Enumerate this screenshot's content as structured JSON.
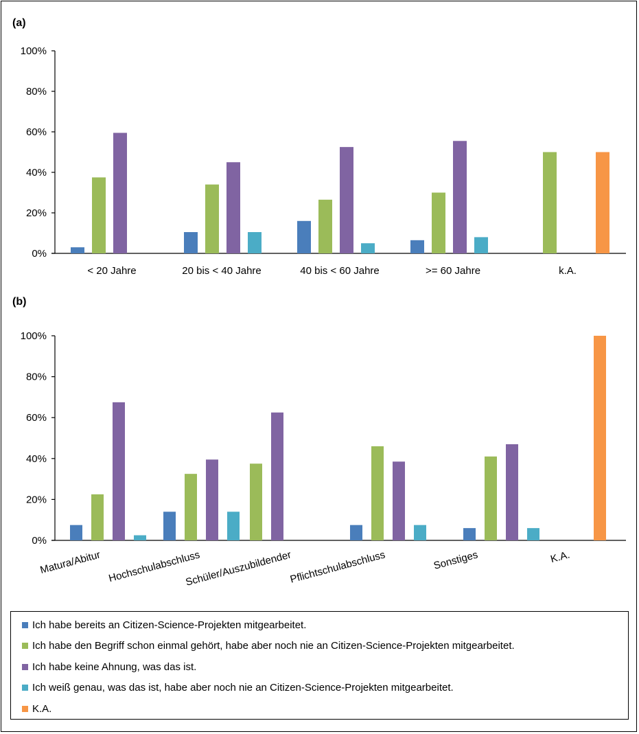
{
  "colors": {
    "s1": "#4a7ebb",
    "s2": "#9bbb59",
    "s3": "#8064a2",
    "s4": "#4bacc6",
    "s5": "#f79646"
  },
  "legend": [
    {
      "name": "Ich habe bereits an Citizen-Science-Projekten mitgearbeitet.",
      "color": "#4a7ebb"
    },
    {
      "name": "Ich habe den Begriff schon einmal gehört, habe aber noch nie an Citizen-Science-Projekten mitgearbeitet.",
      "color": "#9bbb59"
    },
    {
      "name": "Ich habe keine Ahnung, was das ist.",
      "color": "#8064a2"
    },
    {
      "name": "Ich weiß genau, was das ist, habe aber noch nie an Citizen-Science-Projekten mitgearbeitet.",
      "color": "#4bacc6"
    },
    {
      "name": "K.A.",
      "color": "#f79646"
    }
  ],
  "chart_data": [
    {
      "type": "bar",
      "panel_label": "(a)",
      "categories": [
        "< 20 Jahre",
        "20 bis < 40 Jahre",
        "40 bis < 60 Jahre",
        ">= 60 Jahre",
        "k.A."
      ],
      "ylim": [
        0,
        100
      ],
      "yticks": [
        "0%",
        "20%",
        "40%",
        "60%",
        "80%",
        "100%"
      ],
      "tick_values": [
        0,
        20,
        40,
        60,
        80,
        100
      ],
      "series": [
        {
          "values": [
            3,
            10.5,
            16,
            6.5,
            0
          ]
        },
        {
          "values": [
            37.5,
            34,
            26.5,
            30,
            50
          ]
        },
        {
          "values": [
            59.5,
            45,
            52.5,
            55.5,
            0
          ]
        },
        {
          "values": [
            0,
            10.5,
            5,
            8,
            0
          ]
        },
        {
          "values": [
            0,
            0,
            0,
            0,
            50
          ]
        }
      ]
    },
    {
      "type": "bar",
      "panel_label": "(b)",
      "categories": [
        "Matura/Abitur",
        "Hochschulabschluss",
        "Schüler/Auszubildender",
        "Pflichtschulabschluss",
        "Sonstiges",
        "K.A."
      ],
      "ylim": [
        0,
        100
      ],
      "yticks": [
        "0%",
        "20%",
        "40%",
        "60%",
        "80%",
        "100%"
      ],
      "tick_values": [
        0,
        20,
        40,
        60,
        80,
        100
      ],
      "series": [
        {
          "values": [
            7.5,
            14,
            0,
            7.5,
            6,
            0
          ]
        },
        {
          "values": [
            22.5,
            32.5,
            37.5,
            46,
            41,
            0
          ]
        },
        {
          "values": [
            67.5,
            39.5,
            62.5,
            38.5,
            47,
            0
          ]
        },
        {
          "values": [
            2.5,
            14,
            0,
            7.5,
            6,
            0
          ]
        },
        {
          "values": [
            0,
            0,
            0,
            0,
            0,
            100
          ]
        }
      ]
    }
  ]
}
